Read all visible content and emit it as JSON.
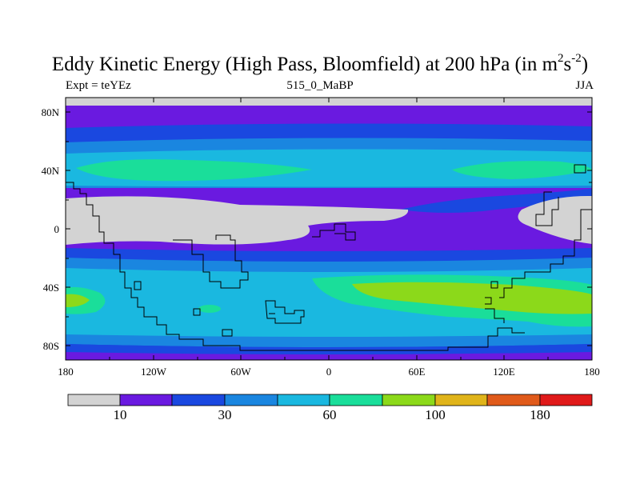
{
  "plot": {
    "title_main": "Eddy Kinetic Energy (High Pass, Bloomfield) at 200 hPa (in m",
    "title_sup1": "2",
    "title_mid": "s",
    "title_sup2": "-2",
    "title_end": ")",
    "left_label": "Expt = teYEz",
    "center_label": "515_0_MaBP",
    "right_label": "JJA"
  },
  "axes": {
    "y_ticks": [
      "80N",
      "40N",
      "0",
      "40S",
      "80S"
    ],
    "x_ticks": [
      "180",
      "120W",
      "60W",
      "0",
      "60E",
      "120E",
      "180"
    ]
  },
  "colorbar": {
    "colors": [
      "#d3d3d3",
      "#6a1ae0",
      "#1a48e0",
      "#1a86e0",
      "#1ab8e0",
      "#1ade9a",
      "#8cd91a",
      "#e0b41a",
      "#e05a1a",
      "#e01a1a"
    ],
    "labels": [
      "10",
      "30",
      "60",
      "100",
      "180"
    ]
  }
}
